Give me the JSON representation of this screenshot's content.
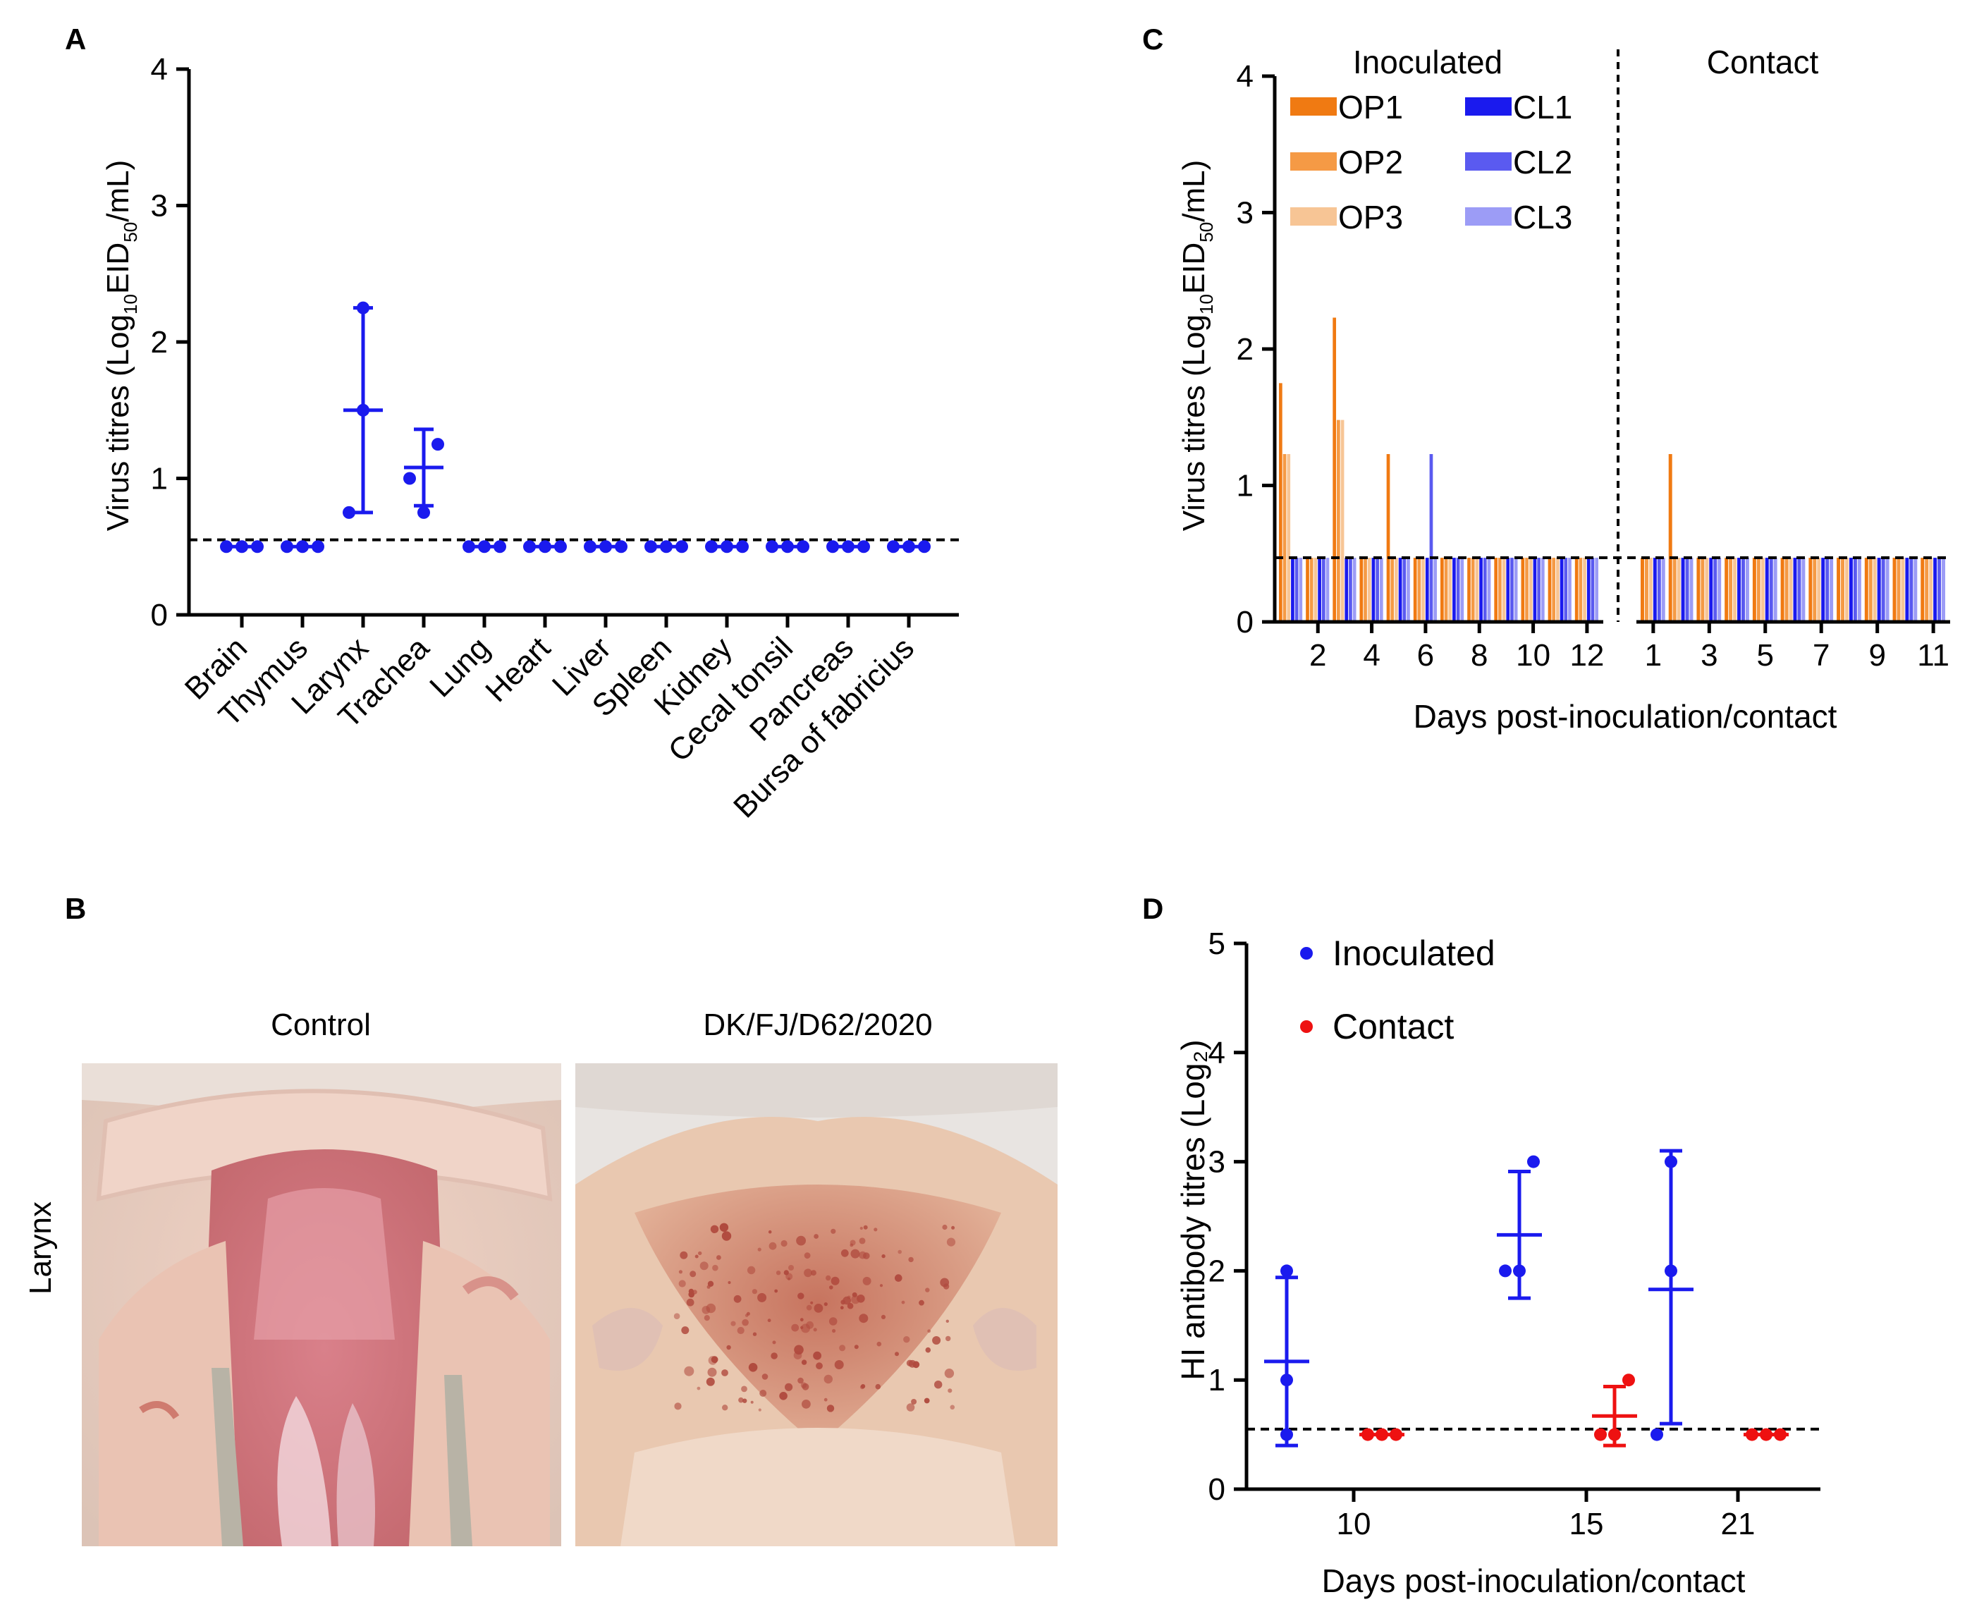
{
  "panel_labels": {
    "a": "A",
    "b": "B",
    "c": "C",
    "d": "D"
  },
  "colors": {
    "blue": "#1a1aee",
    "red": "#ee1111",
    "OP1": "#f07a12",
    "OP2": "#f59a45",
    "OP3": "#f7c595",
    "CL1": "#1a1aee",
    "CL2": "#5a5af0",
    "CL3": "#9c9cf6"
  },
  "photos": {
    "row_label": "Larynx",
    "left_title": "Control",
    "right_title": "DK/FJ/D62/2020"
  },
  "chart_data": [
    {
      "id": "A",
      "type": "scatter",
      "title": "",
      "ylabel": "Virus titres (Log10EID50/mL)",
      "ylabel_parts": {
        "pre": "Virus titres (Log",
        "sub1": "10",
        "mid": "EID",
        "sub2": "50",
        "post": "/mL)"
      },
      "ylim": [
        0,
        4
      ],
      "yticks": [
        "0",
        "1",
        "2",
        "3",
        "4"
      ],
      "detection_limit": 0.55,
      "categories": [
        "Brain",
        "Thymus",
        "Larynx",
        "Trachea",
        "Lung",
        "Heart",
        "Liver",
        "Spleen",
        "Kidney",
        "Cecal tonsil",
        "Pancreas",
        "Bursa of fabricius"
      ],
      "points": [
        [
          0.5,
          0.5,
          0.5
        ],
        [
          0.5,
          0.5,
          0.5
        ],
        [
          0.75,
          1.5,
          2.25
        ],
        [
          0.75,
          1.0,
          1.25
        ],
        [
          0.5,
          0.5,
          0.5
        ],
        [
          0.5,
          0.5,
          0.5
        ],
        [
          0.5,
          0.5,
          0.5
        ],
        [
          0.5,
          0.5,
          0.5
        ],
        [
          0.5,
          0.5,
          0.5
        ],
        [
          0.5,
          0.5,
          0.5
        ],
        [
          0.5,
          0.5,
          0.5
        ],
        [
          0.5,
          0.5,
          0.5
        ]
      ],
      "mean": [
        0.5,
        0.5,
        1.5,
        1.08,
        0.5,
        0.5,
        0.5,
        0.5,
        0.5,
        0.5,
        0.5,
        0.5
      ],
      "err_low": [
        0.5,
        0.5,
        0.75,
        0.8,
        0.5,
        0.5,
        0.5,
        0.5,
        0.5,
        0.5,
        0.5,
        0.5
      ],
      "err_high": [
        0.5,
        0.5,
        2.25,
        1.36,
        0.5,
        0.5,
        0.5,
        0.5,
        0.5,
        0.5,
        0.5,
        0.5
      ]
    },
    {
      "id": "C",
      "type": "bar",
      "title": "",
      "ylabel": "Virus titres (Log10EID50/mL)",
      "ylabel_parts": {
        "pre": "Virus titres (Log",
        "sub1": "10",
        "mid": "EID",
        "sub2": "50",
        "post": "/mL)"
      },
      "xlabel": "Days post-inoculation/contact",
      "ylim": [
        0,
        4
      ],
      "yticks": [
        "0",
        "1",
        "2",
        "3",
        "4"
      ],
      "detection_limit": 0.47,
      "group_titles": [
        "Inoculated",
        "Contact"
      ],
      "legend": [
        {
          "name": "OP1",
          "color": "#f07a12"
        },
        {
          "name": "CL1",
          "color": "#1a1aee"
        },
        {
          "name": "OP2",
          "color": "#f59a45"
        },
        {
          "name": "CL2",
          "color": "#5a5af0"
        },
        {
          "name": "OP3",
          "color": "#f7c595"
        },
        {
          "name": "CL3",
          "color": "#9c9cf6"
        }
      ],
      "series_order": [
        "OP1",
        "OP2",
        "OP3",
        "CL1",
        "CL2",
        "CL3"
      ],
      "inoculated": {
        "days": [
          1,
          2,
          3,
          4,
          5,
          6,
          7,
          8,
          9,
          10,
          11,
          12
        ],
        "tick_labels": {
          "2": "2",
          "4": "4",
          "6": "6",
          "8": "8",
          "10": "10",
          "12": "12"
        },
        "series": [
          {
            "name": "OP1",
            "values": [
              1.75,
              0.47,
              2.23,
              0.47,
              1.23,
              0.47,
              0.47,
              0.47,
              0.47,
              0.47,
              0.47,
              0.47
            ]
          },
          {
            "name": "OP2",
            "values": [
              1.23,
              0.47,
              1.48,
              0.47,
              0.47,
              0.47,
              0.47,
              0.47,
              0.47,
              0.47,
              0.47,
              0.47
            ]
          },
          {
            "name": "OP3",
            "values": [
              1.23,
              0.47,
              1.48,
              0.47,
              0.47,
              0.47,
              0.47,
              0.47,
              0.47,
              0.47,
              0.47,
              0.47
            ]
          },
          {
            "name": "CL1",
            "values": [
              0.47,
              0.47,
              0.47,
              0.47,
              0.47,
              0.47,
              0.47,
              0.47,
              0.47,
              0.47,
              0.47,
              0.47
            ]
          },
          {
            "name": "CL2",
            "values": [
              0.47,
              0.47,
              0.47,
              0.47,
              0.47,
              1.23,
              0.47,
              0.47,
              0.47,
              0.47,
              0.47,
              0.47
            ]
          },
          {
            "name": "CL3",
            "values": [
              0.47,
              0.47,
              0.47,
              0.47,
              0.47,
              0.47,
              0.47,
              0.47,
              0.47,
              0.47,
              0.47,
              0.47
            ]
          }
        ]
      },
      "contact": {
        "days": [
          1,
          2,
          3,
          4,
          5,
          6,
          7,
          8,
          9,
          10,
          11
        ],
        "tick_labels": {
          "1": "1",
          "3": "3",
          "5": "5",
          "7": "7",
          "9": "9",
          "11": "11"
        },
        "series": [
          {
            "name": "OP1",
            "values": [
              0.47,
              1.23,
              0.47,
              0.47,
              0.47,
              0.47,
              0.47,
              0.47,
              0.47,
              0.47,
              0.47
            ]
          },
          {
            "name": "OP2",
            "values": [
              0.47,
              0.47,
              0.47,
              0.47,
              0.47,
              0.47,
              0.47,
              0.47,
              0.47,
              0.47,
              0.47
            ]
          },
          {
            "name": "OP3",
            "values": [
              0.47,
              0.47,
              0.47,
              0.47,
              0.47,
              0.47,
              0.47,
              0.47,
              0.47,
              0.47,
              0.47
            ]
          },
          {
            "name": "CL1",
            "values": [
              0.47,
              0.47,
              0.47,
              0.47,
              0.47,
              0.47,
              0.47,
              0.47,
              0.47,
              0.47,
              0.47
            ]
          },
          {
            "name": "CL2",
            "values": [
              0.47,
              0.47,
              0.47,
              0.47,
              0.47,
              0.47,
              0.47,
              0.47,
              0.47,
              0.47,
              0.47
            ]
          },
          {
            "name": "CL3",
            "values": [
              0.47,
              0.47,
              0.47,
              0.47,
              0.47,
              0.47,
              0.47,
              0.47,
              0.47,
              0.47,
              0.47
            ]
          }
        ]
      }
    },
    {
      "id": "D",
      "type": "scatter",
      "title": "",
      "ylabel": "HI antibody titres (Log₂)",
      "xlabel": "Days post-inoculation/contact",
      "ylim": [
        0,
        5
      ],
      "yticks": [
        "0",
        "1",
        "2",
        "3",
        "4",
        "5"
      ],
      "detection_limit": 0.55,
      "categories": [
        "10",
        "15",
        "21"
      ],
      "legend": [
        {
          "name": "Inoculated",
          "color": "#1a1aee"
        },
        {
          "name": "Contact",
          "color": "#ee1111"
        }
      ],
      "series": [
        {
          "name": "Inoculated",
          "points": [
            [
              0.5,
              1.0,
              2.0
            ],
            [
              2.0,
              2.0,
              3.0
            ],
            [
              0.5,
              2.0,
              3.0
            ]
          ],
          "mean": [
            1.17,
            2.33,
            1.83
          ],
          "err_low": [
            0.4,
            1.75,
            0.6
          ],
          "err_high": [
            1.94,
            2.91,
            3.1
          ]
        },
        {
          "name": "Contact",
          "points": [
            [
              0.5,
              0.5,
              0.5
            ],
            [
              0.5,
              0.5,
              1.0
            ],
            [
              0.5,
              0.5,
              0.5
            ]
          ],
          "mean": [
            0.5,
            0.67,
            0.5
          ],
          "err_low": [
            0.5,
            0.4,
            0.5
          ],
          "err_high": [
            0.5,
            0.94,
            0.5
          ]
        }
      ]
    }
  ]
}
